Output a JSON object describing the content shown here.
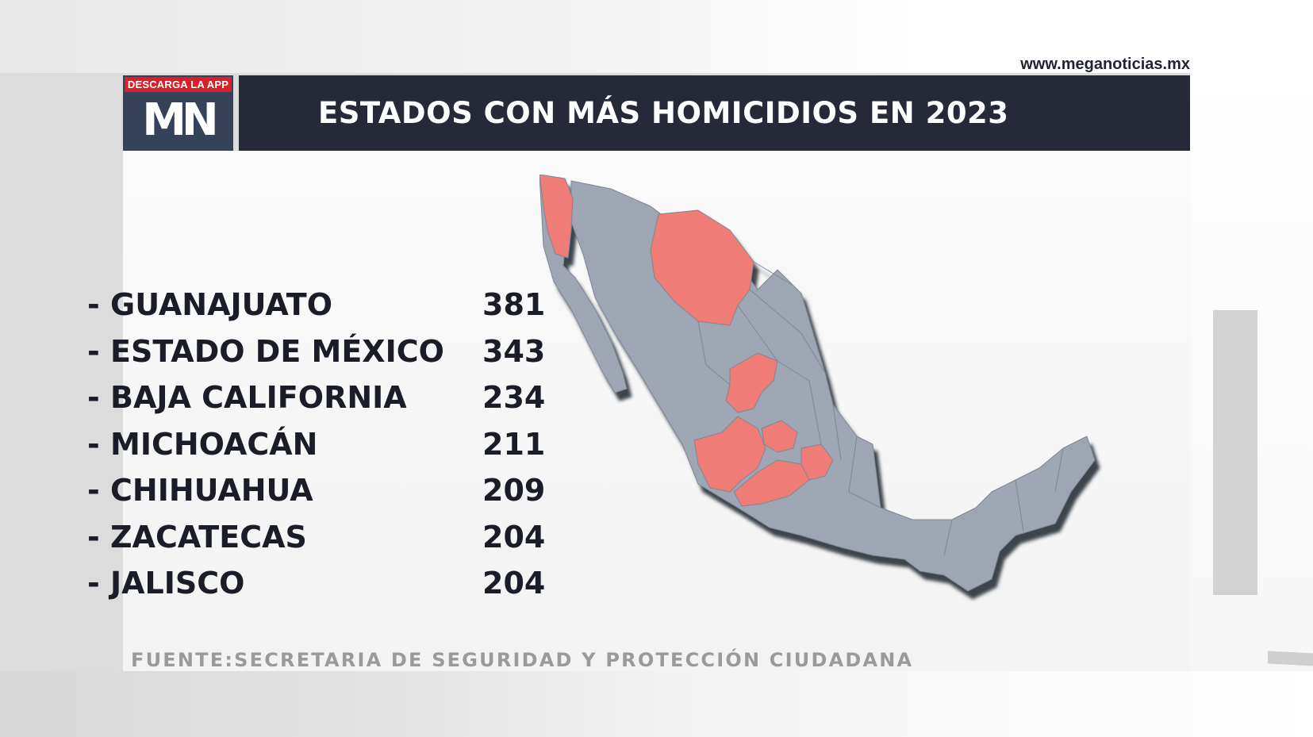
{
  "site_url": "www.meganoticias.mx",
  "logo": {
    "badge": "DESCARGA LA APP",
    "mark": "MN"
  },
  "title": "ESTADOS CON MÁS HOMICIDIOS EN 2023",
  "list": [
    {
      "state": "- GUANAJUATO",
      "value": "381"
    },
    {
      "state": "- ESTADO DE MÉXICO",
      "value": "343"
    },
    {
      "state": "- BAJA CALIFORNIA",
      "value": "234"
    },
    {
      "state": "- MICHOACÁN",
      "value": "211"
    },
    {
      "state": "- CHIHUAHUA",
      "value": "209"
    },
    {
      "state": "- ZACATECAS",
      "value": "204"
    },
    {
      "state": "- JALISCO",
      "value": "204"
    }
  ],
  "source": "FUENTE:SECRETARIA DE  SEGURIDAD Y PROTECCIÓN CIUDADANA",
  "colors": {
    "title_bar": "#262a38",
    "logo_bg": "#36415a",
    "badge": "#d9202a",
    "highlight_state": "#f07c78",
    "other_state": "#9ea6b4"
  }
}
